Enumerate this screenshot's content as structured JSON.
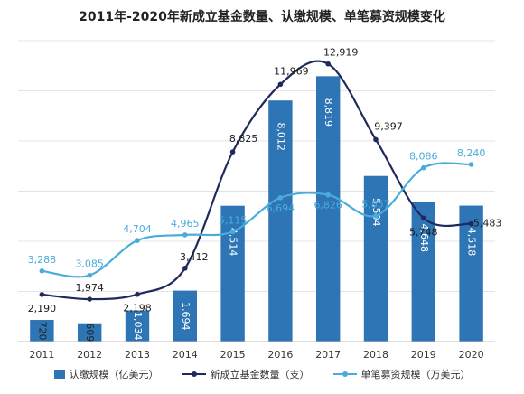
{
  "chart_data": {
    "type": "bar",
    "title": "2011年-2020年新成立基金数量、认缴规模、单笔募资规模变化",
    "categories": [
      "2011",
      "2012",
      "2013",
      "2014",
      "2015",
      "2016",
      "2017",
      "2018",
      "2019",
      "2020"
    ],
    "series": [
      {
        "name": "认缴规模（亿美元）",
        "type": "bar",
        "color": "#2E75B6",
        "values": [
          720,
          609,
          1034,
          1694,
          4514,
          8012,
          8819,
          5504,
          4648,
          4518
        ],
        "labels": [
          "720",
          "609",
          "1,034",
          "1,694",
          "4,514",
          "8,012",
          "8,819",
          "5,504",
          "4,648",
          "4,518"
        ]
      },
      {
        "name": "新成立基金数量（支）",
        "type": "line",
        "color": "#1F2A5C",
        "values": [
          2190,
          1974,
          2198,
          3412,
          8825,
          11969,
          12919,
          9397,
          5748,
          5483
        ],
        "labels": [
          "2,190",
          "1,974",
          "2,198",
          "3,412",
          "8,825",
          "11,969",
          "12,919",
          "9,397",
          "5,748",
          "5,483"
        ]
      },
      {
        "name": "单笔募资规模（万美元）",
        "type": "line",
        "color": "#4AACDC",
        "values": [
          3288,
          3085,
          4704,
          4965,
          5115,
          6694,
          6826,
          5857,
          8086,
          8240
        ],
        "labels": [
          "3,288",
          "3,085",
          "4,704",
          "4,965",
          "5,115",
          "6,694",
          "6,826",
          "5,857",
          "8,086",
          "8,240"
        ]
      }
    ],
    "grid": true,
    "legend": "bottom"
  }
}
